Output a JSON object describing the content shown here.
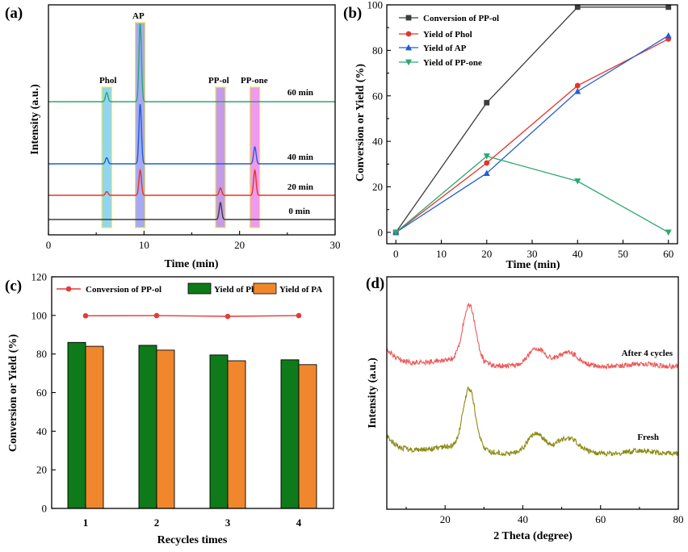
{
  "colors": {
    "black": "#3d3d3d",
    "red": "#e8332a",
    "blue": "#1f5fd6",
    "green": "#2aa871",
    "bar_green": "#0f7a19",
    "bar_orange": "#f0872c",
    "line_red": "#e23b3b",
    "xrd_red": "#ec5a5a",
    "xrd_olive": "#8c8a12",
    "band_cyan": "#6cc7ec",
    "band_blue": "#8a8cf0",
    "band_purple": "#b27ae2",
    "band_magenta": "#ea78e6",
    "band_border": "#e8e84a"
  },
  "chart_data": [
    {
      "id": "a",
      "panel_label": "(a)",
      "type": "line",
      "title": "",
      "xlabel": "Time (min)",
      "ylabel": "Intensity (a.u.)",
      "xlim": [
        0,
        30
      ],
      "xticks": [
        0,
        10,
        20,
        30
      ],
      "peak_labels": [
        {
          "text": "Phol",
          "x": 6.1
        },
        {
          "text": "AP",
          "x": 9.6
        },
        {
          "text": "PP-ol",
          "x": 18.0
        },
        {
          "text": "PP-one",
          "x": 21.6
        }
      ],
      "series": [
        {
          "name": "0 min",
          "color": "#3d3d3d",
          "offset": 0,
          "peaks": [
            {
              "x": 18.0,
              "height": 0.55
            }
          ]
        },
        {
          "name": "20 min",
          "color": "#e8332a",
          "offset": 1,
          "peaks": [
            {
              "x": 6.1,
              "height": 0.12
            },
            {
              "x": 9.6,
              "height": 0.82
            },
            {
              "x": 18.0,
              "height": 0.24
            },
            {
              "x": 21.6,
              "height": 0.82
            }
          ]
        },
        {
          "name": "40 min",
          "color": "#1f5fd6",
          "offset": 2,
          "peaks": [
            {
              "x": 6.1,
              "height": 0.2
            },
            {
              "x": 9.6,
              "height": 1.95
            },
            {
              "x": 21.6,
              "height": 0.55
            }
          ]
        },
        {
          "name": "60 min",
          "color": "#2aa871",
          "offset": 3,
          "peaks": [
            {
              "x": 6.1,
              "height": 0.3
            },
            {
              "x": 9.6,
              "height": 2.55
            }
          ]
        }
      ]
    },
    {
      "id": "b",
      "panel_label": "(b)",
      "type": "line",
      "title": "",
      "xlabel": "Time (min)",
      "ylabel": "Conversion or Yield (%)",
      "xlim": [
        -2,
        62
      ],
      "ylim": [
        -5,
        100
      ],
      "xticks": [
        0,
        10,
        20,
        30,
        40,
        50,
        60
      ],
      "yticks": [
        0,
        20,
        40,
        60,
        80,
        100
      ],
      "x": [
        0,
        20,
        40,
        60
      ],
      "legend_position": "top-left",
      "series": [
        {
          "name": "Conversion of PP-ol",
          "marker": "square",
          "color": "#3d3d3d",
          "values": [
            0,
            57,
            99,
            99
          ]
        },
        {
          "name": "Yield of Phol",
          "marker": "circle",
          "color": "#e8332a",
          "values": [
            0,
            30.5,
            64.5,
            85
          ]
        },
        {
          "name": "Yield of AP",
          "marker": "triangle-up",
          "color": "#1f5fd6",
          "values": [
            0,
            26,
            62,
            86.5
          ]
        },
        {
          "name": "Yield of PP-one",
          "marker": "triangle-down",
          "color": "#2aa871",
          "values": [
            0,
            33.5,
            22.5,
            0
          ]
        }
      ]
    },
    {
      "id": "c",
      "panel_label": "(c)",
      "type": "bar",
      "title": "",
      "xlabel": "Recycles times",
      "ylabel": "Conversion or Yield (%)",
      "categories": [
        "1",
        "2",
        "3",
        "4"
      ],
      "ylim": [
        0,
        120
      ],
      "yticks": [
        0,
        20,
        40,
        60,
        80,
        100,
        120
      ],
      "legend_position": "top",
      "series": [
        {
          "name": "Conversion of PP-ol",
          "kind": "line",
          "color": "#e23b3b",
          "values": [
            99.8,
            99.9,
            99.5,
            99.9
          ]
        },
        {
          "name": "Yield of Phol",
          "kind": "bar",
          "color": "#0f7a19",
          "values": [
            86,
            84.5,
            79.5,
            77
          ]
        },
        {
          "name": "Yield of PA",
          "kind": "bar",
          "color": "#f0872c",
          "values": [
            84,
            82,
            76.5,
            74.5
          ]
        }
      ]
    },
    {
      "id": "d",
      "panel_label": "(d)",
      "type": "line",
      "title": "",
      "xlabel": "2 Theta (degree)",
      "ylabel": "Intensity (a.u.)",
      "xlim": [
        5,
        80
      ],
      "xticks": [
        20,
        40,
        60,
        80
      ],
      "series": [
        {
          "name": "After 4 cycles",
          "color": "#ec5a5a",
          "offset": 1,
          "peaks": [
            {
              "x": 26.2,
              "height": 1.0,
              "width": 1.6
            },
            {
              "x": 43.5,
              "height": 0.32,
              "width": 2.2
            },
            {
              "x": 51.5,
              "height": 0.25,
              "width": 2.8
            },
            {
              "x": 70.5,
              "height": 0.05,
              "width": 3.0
            }
          ]
        },
        {
          "name": "Fresh",
          "color": "#8c8a12",
          "offset": 0,
          "peaks": [
            {
              "x": 26.2,
              "height": 1.05,
              "width": 1.6
            },
            {
              "x": 43.5,
              "height": 0.35,
              "width": 2.2
            },
            {
              "x": 51.5,
              "height": 0.28,
              "width": 2.8
            },
            {
              "x": 70.5,
              "height": 0.05,
              "width": 3.0
            }
          ]
        }
      ]
    }
  ]
}
